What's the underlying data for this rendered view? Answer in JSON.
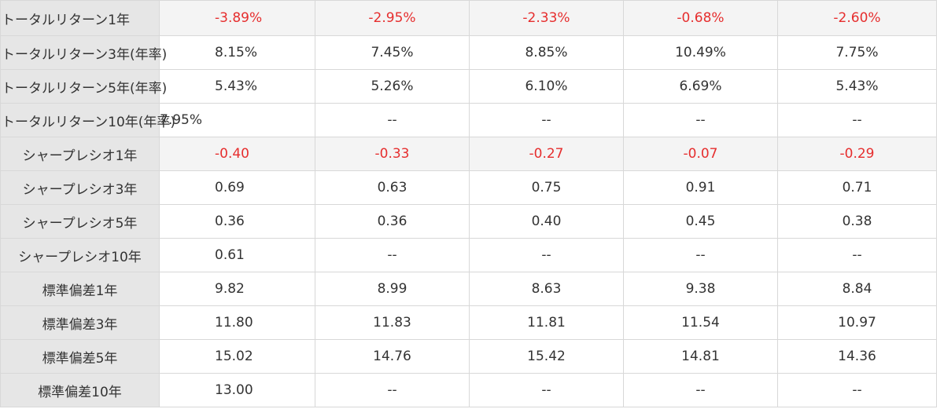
{
  "table": {
    "rows": [
      {
        "label": "トータルリターン1年",
        "values": [
          "-3.89%",
          "-2.95%",
          "-2.33%",
          "-0.68%",
          "-2.60%"
        ],
        "negative": true
      },
      {
        "label": "トータルリターン3年(年率)",
        "values": [
          "8.15%",
          "7.45%",
          "8.85%",
          "10.49%",
          "7.75%"
        ],
        "negative": false
      },
      {
        "label": "トータルリターン5年(年率)",
        "values": [
          "5.43%",
          "5.26%",
          "6.10%",
          "6.69%",
          "5.43%"
        ],
        "negative": false
      },
      {
        "label": "トータルリターン10年(年率)",
        "values": [
          "7.95%",
          "--",
          "--",
          "--",
          "--"
        ],
        "negative": false
      },
      {
        "label": "シャープレシオ1年",
        "values": [
          "-0.40",
          "-0.33",
          "-0.27",
          "-0.07",
          "-0.29"
        ],
        "negative": true
      },
      {
        "label": "シャープレシオ3年",
        "values": [
          "0.69",
          "0.63",
          "0.75",
          "0.91",
          "0.71"
        ],
        "negative": false
      },
      {
        "label": "シャープレシオ5年",
        "values": [
          "0.36",
          "0.36",
          "0.40",
          "0.45",
          "0.38"
        ],
        "negative": false
      },
      {
        "label": "シャープレシオ10年",
        "values": [
          "0.61",
          "--",
          "--",
          "--",
          "--"
        ],
        "negative": false
      },
      {
        "label": "標準偏差1年",
        "values": [
          "9.82",
          "8.99",
          "8.63",
          "9.38",
          "8.84"
        ],
        "negative": false
      },
      {
        "label": "標準偏差3年",
        "values": [
          "11.80",
          "11.83",
          "11.81",
          "11.54",
          "10.97"
        ],
        "negative": false
      },
      {
        "label": "標準偏差5年",
        "values": [
          "15.02",
          "14.76",
          "15.42",
          "14.81",
          "14.36"
        ],
        "negative": false
      },
      {
        "label": "標準偏差10年",
        "values": [
          "13.00",
          "--",
          "--",
          "--",
          "--"
        ],
        "negative": false
      }
    ],
    "colors": {
      "negative": "#e62e2e",
      "label_background": "#e6e6e6",
      "shaded_row_background": "#f4f4f4",
      "grid_line": "#d8d8d8",
      "text": "#333333"
    }
  }
}
